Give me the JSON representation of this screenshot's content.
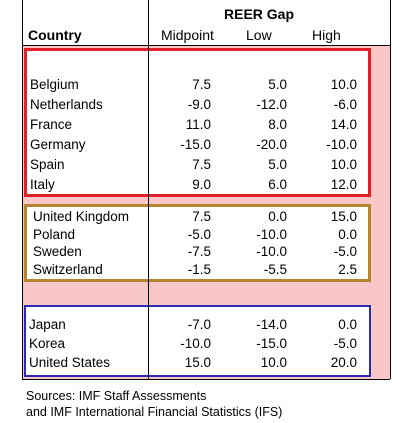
{
  "header": {
    "group_title": "REER Gap",
    "country": "Country",
    "columns": [
      "Midpoint",
      "Low",
      "High"
    ]
  },
  "groups": [
    {
      "color": "#e2202a",
      "rows": [
        {
          "country": "Belgium",
          "midpoint": "7.5",
          "low": "5.0",
          "high": "10.0"
        },
        {
          "country": "Netherlands",
          "midpoint": "-9.0",
          "low": "-12.0",
          "high": "-6.0"
        },
        {
          "country": "France",
          "midpoint": "11.0",
          "low": "8.0",
          "high": "14.0"
        },
        {
          "country": "Germany",
          "midpoint": "-15.0",
          "low": "-20.0",
          "high": "-10.0"
        },
        {
          "country": "Spain",
          "midpoint": "7.5",
          "low": "5.0",
          "high": "10.0"
        },
        {
          "country": "Italy",
          "midpoint": "9.0",
          "low": "6.0",
          "high": "12.0"
        }
      ]
    },
    {
      "color": "#b7852f",
      "rows": [
        {
          "country": "United Kingdom",
          "midpoint": "7.5",
          "low": "0.0",
          "high": "15.0"
        },
        {
          "country": "Poland",
          "midpoint": "-5.0",
          "low": "-10.0",
          "high": "0.0"
        },
        {
          "country": "Sweden",
          "midpoint": "-7.5",
          "low": "-10.0",
          "high": "-5.0"
        },
        {
          "country": "Switzerland",
          "midpoint": "-1.5",
          "low": "-5.5",
          "high": "2.5"
        }
      ]
    },
    {
      "color": "#2a2ab3",
      "rows": [
        {
          "country": "Japan",
          "midpoint": "-7.0",
          "low": "-14.0",
          "high": "0.0"
        },
        {
          "country": "Korea",
          "midpoint": "-10.0",
          "low": "-15.0",
          "high": "-5.0"
        },
        {
          "country": "United States",
          "midpoint": "15.0",
          "low": "10.0",
          "high": "20.0"
        }
      ]
    }
  ],
  "source": {
    "line1": "Sources: IMF Staff Assessments",
    "line2": "and IMF International Financial Statistics (IFS)"
  }
}
